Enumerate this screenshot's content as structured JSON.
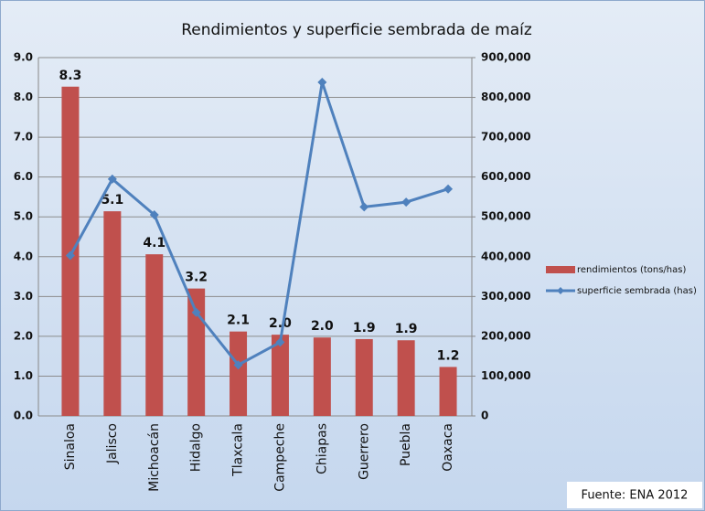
{
  "chart_data": {
    "type": "bar",
    "title": "Rendimientos y superficie sembrada  de maíz",
    "categories": [
      "Sinaloa",
      "Jalisco",
      "Michoacán",
      "Hidalgo",
      "Tlaxcala",
      "Campeche",
      "Chiapas",
      "Guerrero",
      "Puebla",
      "Oaxaca"
    ],
    "series": [
      {
        "name": "rendimientos (tons/has)",
        "type": "bar",
        "color": "#c0504d",
        "values": [
          8.27,
          5.14,
          4.06,
          3.2,
          2.12,
          2.04,
          1.97,
          1.93,
          1.9,
          1.23
        ],
        "value_labels": [
          "8.3",
          "5.1",
          "4.1",
          "3.2",
          "2.1",
          "2.0",
          "2.0",
          "1.9",
          "1.9",
          "1.2"
        ]
      },
      {
        "name": "superficie sembrada (has)",
        "type": "line",
        "axis": "y2",
        "color": "#4f81bd",
        "values": [
          403000,
          595000,
          505000,
          260000,
          128000,
          185000,
          838000,
          525000,
          537000,
          570000
        ]
      }
    ],
    "ylim": [
      0,
      9
    ],
    "yticks": [
      {
        "value": 0,
        "label": "0.0"
      },
      {
        "value": 1,
        "label": "1.0"
      },
      {
        "value": 2,
        "label": "2.0"
      },
      {
        "value": 3,
        "label": "3.0"
      },
      {
        "value": 4,
        "label": "4.0"
      },
      {
        "value": 5,
        "label": "5.0"
      },
      {
        "value": 6,
        "label": "6.0"
      },
      {
        "value": 7,
        "label": "7.0"
      },
      {
        "value": 8,
        "label": "8.0"
      },
      {
        "value": 9,
        "label": "9.0"
      }
    ],
    "y2lim": [
      0,
      900000
    ],
    "y2ticks": [
      0,
      {
        "value": 100000,
        "label": "100,000"
      },
      {
        "value": 200000,
        "label": "200,000"
      },
      {
        "value": 300000,
        "label": "300,000"
      },
      {
        "value": 400000,
        "label": "400,000"
      },
      {
        "value": 500000,
        "label": "500,000"
      },
      {
        "value": 600000,
        "label": "600,000"
      },
      {
        "value": 700000,
        "label": "700,000"
      },
      {
        "value": 800000,
        "label": "800,000"
      },
      {
        "value": 900000,
        "label": "900,000"
      }
    ],
    "grid": true,
    "legend": "right",
    "source": "Fuente: ENA 2012"
  }
}
